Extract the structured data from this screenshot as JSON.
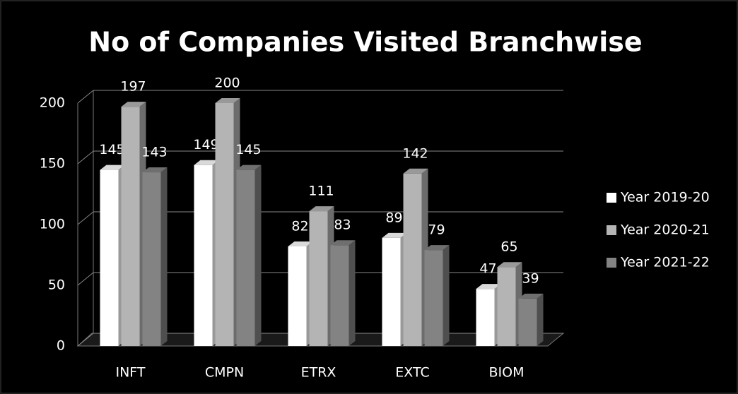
{
  "chart_data": {
    "type": "bar",
    "title": "No of Companies Visited Branchwise",
    "categories": [
      "INFT",
      "CMPN",
      "ETRX",
      "EXTC",
      "BIOM"
    ],
    "series": [
      {
        "name": "Year 2019-20",
        "color": "#ffffff",
        "values": [
          145,
          149,
          82,
          89,
          47
        ]
      },
      {
        "name": "Year 2020-21",
        "color": "#b4b4b4",
        "values": [
          197,
          200,
          111,
          142,
          65
        ]
      },
      {
        "name": "Year 2021-22",
        "color": "#838383",
        "values": [
          143,
          145,
          83,
          79,
          39
        ]
      }
    ],
    "ylim": [
      0,
      200
    ],
    "yticks": [
      0,
      50,
      100,
      150,
      200
    ],
    "grid": true,
    "legend": "right"
  }
}
